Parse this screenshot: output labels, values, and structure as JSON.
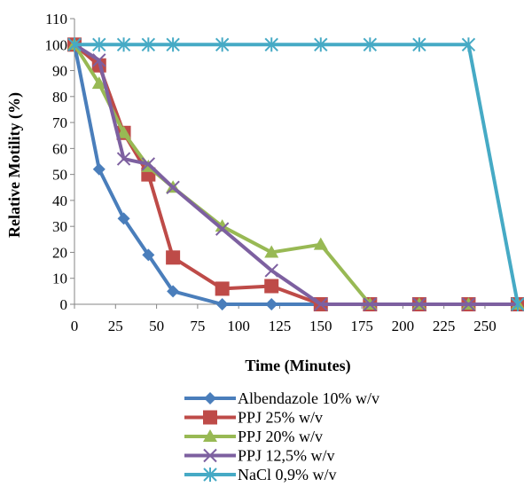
{
  "chart_data": {
    "type": "line",
    "xlabel": "Time (Minutes)",
    "ylabel": "Relative Motility (%)",
    "xlim": [
      0,
      270
    ],
    "ylim": [
      0,
      110
    ],
    "x_ticks": [
      0,
      25,
      50,
      75,
      100,
      125,
      150,
      175,
      200,
      225,
      250
    ],
    "y_ticks": [
      0,
      10,
      20,
      30,
      40,
      50,
      60,
      70,
      80,
      90,
      100,
      110
    ],
    "grid": false,
    "legend_position": "bottom",
    "series": [
      {
        "name": "Albendazole 10% w/v",
        "color": "#4a7ebb",
        "marker": "diamond",
        "x": [
          0,
          15,
          30,
          45,
          60,
          90,
          120,
          150,
          180,
          210,
          240,
          270
        ],
        "y": [
          100,
          52,
          33,
          19,
          5,
          0,
          0,
          0,
          0,
          0,
          0,
          0
        ]
      },
      {
        "name": "PPJ 25% w/v",
        "color": "#be4b48",
        "marker": "square",
        "x": [
          0,
          15,
          30,
          45,
          60,
          90,
          120,
          150,
          180,
          210,
          240,
          270
        ],
        "y": [
          100,
          92,
          66,
          50,
          18,
          6,
          7,
          0,
          0,
          0,
          0,
          0
        ]
      },
      {
        "name": "PPJ 20% w/v",
        "color": "#98b954",
        "marker": "triangle",
        "x": [
          0,
          15,
          30,
          45,
          60,
          90,
          120,
          150,
          180,
          210,
          240,
          270
        ],
        "y": [
          100,
          85,
          66,
          53,
          45,
          30,
          20,
          23,
          0,
          0,
          0,
          0
        ]
      },
      {
        "name": "PPJ 12,5% w/v",
        "color": "#7d60a0",
        "marker": "x",
        "x": [
          0,
          15,
          30,
          45,
          60,
          90,
          120,
          150,
          180,
          210,
          240,
          270
        ],
        "y": [
          100,
          94,
          56,
          54,
          45,
          29,
          13,
          0,
          0,
          0,
          0,
          0
        ]
      },
      {
        "name": "NaCl 0,9% w/v",
        "color": "#46aac5",
        "marker": "star",
        "x": [
          0,
          15,
          30,
          45,
          60,
          90,
          120,
          150,
          180,
          210,
          240,
          270
        ],
        "y": [
          100,
          100,
          100,
          100,
          100,
          100,
          100,
          100,
          100,
          100,
          100,
          0
        ]
      }
    ]
  }
}
